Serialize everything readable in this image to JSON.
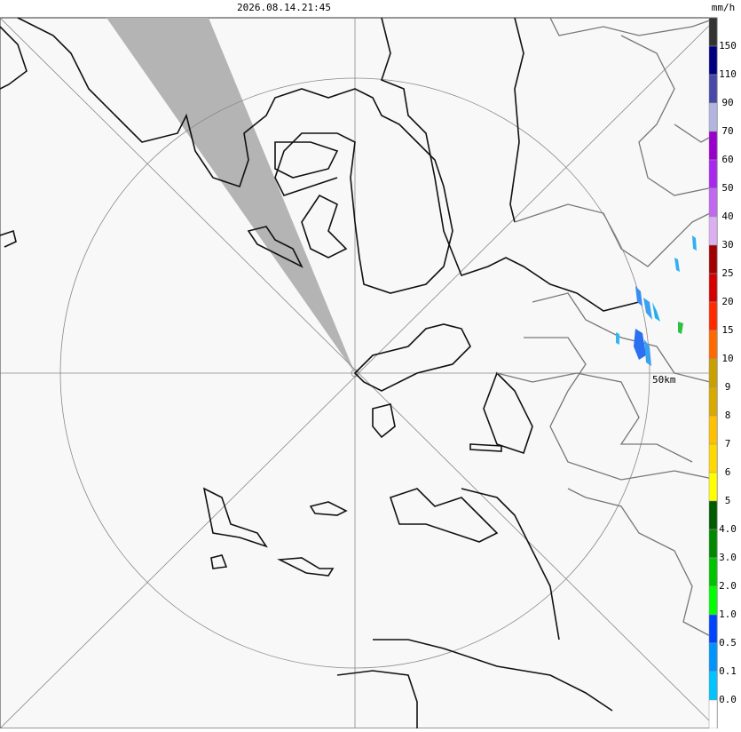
{
  "timestamp": "2026.08.14.21:45",
  "range_label": "50km",
  "legend": {
    "unit": "mm/h",
    "colors": [
      "#333333",
      "#000080",
      "#4848a8",
      "#b4b4e0",
      "#9900cc",
      "#a828f0",
      "#c068f0",
      "#dcb0f0",
      "#a00000",
      "#d40000",
      "#ff2a00",
      "#ff6a00",
      "#c8a000",
      "#d8aa00",
      "#ffc000",
      "#ffd800",
      "#ffff00",
      "#005a00",
      "#008800",
      "#00c400",
      "#00ff00",
      "#0044ff",
      "#0094ff",
      "#00c4ff",
      "#ffffff"
    ],
    "labels": [
      "150",
      "110",
      "90",
      "70",
      "60",
      "50",
      "40",
      "30",
      "25",
      "20",
      "15",
      "10",
      "9",
      "8",
      "7",
      "6",
      "5",
      "4.0",
      "3.0",
      "2.0",
      "1.0",
      "0.5",
      "0.1",
      "0.0"
    ]
  }
}
